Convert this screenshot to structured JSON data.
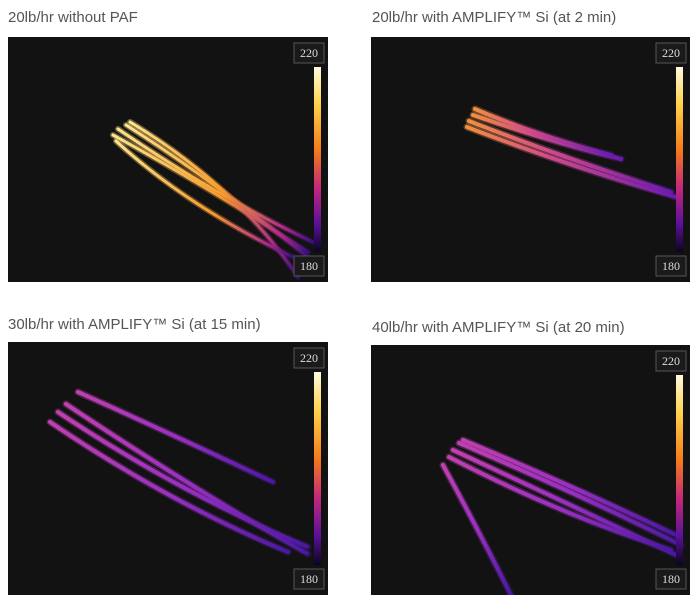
{
  "panels": [
    {
      "caption": "20lb/hr without PAF",
      "scale_max": 220,
      "scale_min": 180
    },
    {
      "caption": "20lb/hr with AMPLIFY™ Si (at 2 min)",
      "scale_max": 220,
      "scale_min": 180
    },
    {
      "caption": "30lb/hr with AMPLIFY™ Si (at 15 min)",
      "scale_max": 220,
      "scale_min": 180
    },
    {
      "caption": "40lb/hr with AMPLIFY™ Si (at 20 min)",
      "scale_max": 220,
      "scale_min": 180
    }
  ]
}
